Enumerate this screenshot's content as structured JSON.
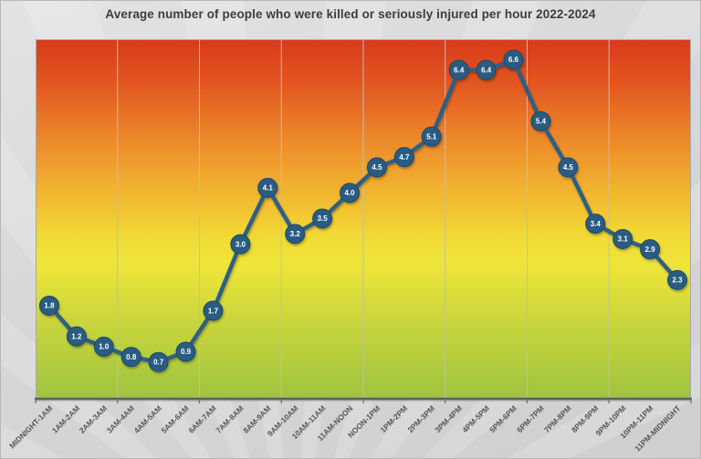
{
  "chart_data": {
    "type": "line",
    "title": "Average number of people who were killed or seriously injured per hour 2022-2024",
    "xlabel": "",
    "ylabel": "",
    "ylim": [
      0,
      7
    ],
    "legend": "none",
    "grid": {
      "vertical_major_every_categories": 3,
      "horizontal": false
    },
    "point_labels": "value shown inside circular marker, one decimal",
    "categories": [
      "MIDNIGHT-1AM",
      "1AM-2AM",
      "2AM-3AM",
      "3AM-4AM",
      "4AM-5AM",
      "5AM-6AM",
      "6AM-7AM",
      "7AM-8AM",
      "8AM-9AM",
      "9AM-10AM",
      "10AM-11AM",
      "11AM-NOON",
      "NOON-1PM",
      "1PM-2PM",
      "2PM-3PM",
      "3PM-4PM",
      "4PM-5PM",
      "5PM-6PM",
      "6PM-7PM",
      "7PM-8PM",
      "8PM-9PM",
      "9PM-10PM",
      "10PM-11PM",
      "11PM-MIDNIGHT"
    ],
    "values": [
      1.8,
      1.2,
      1.0,
      0.8,
      0.7,
      0.9,
      1.7,
      3.0,
      4.1,
      3.2,
      3.5,
      4.0,
      4.5,
      4.7,
      5.1,
      6.4,
      6.4,
      6.6,
      5.4,
      4.5,
      3.4,
      3.1,
      2.9,
      2.3
    ],
    "style": {
      "line_color": "#2e5e84",
      "marker_fill": "#2b5c82",
      "marker_stroke": "#1e4965",
      "marker_text_color": "#ffffff",
      "gridline_color": "#bdbdbd",
      "plot_border_color": "#a9a9a9",
      "axis_line_color": "#5f5f5f",
      "tick_color": "#6a6a6a",
      "tick_label_color": "#575757",
      "title_color": "#3d3d3d",
      "page_background": "#d6d6d8",
      "plot_gradient_stops": [
        {
          "offset": 0.0,
          "color": "#d93a1b"
        },
        {
          "offset": 0.12,
          "color": "#e25520"
        },
        {
          "offset": 0.27,
          "color": "#ec8629"
        },
        {
          "offset": 0.42,
          "color": "#f1b32f"
        },
        {
          "offset": 0.55,
          "color": "#f2da36"
        },
        {
          "offset": 0.63,
          "color": "#eee53a"
        },
        {
          "offset": 0.78,
          "color": "#cbd63c"
        },
        {
          "offset": 1.0,
          "color": "#9fc43f"
        }
      ]
    }
  }
}
